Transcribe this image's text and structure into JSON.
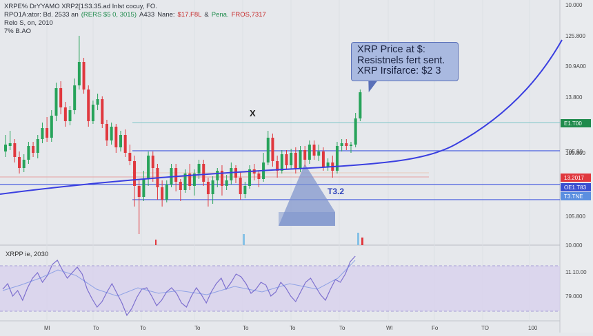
{
  "header": {
    "line1_parts": [
      {
        "text": "XRPE% DrYYAMO XRP2[1S3.35.ad Inlst cocuy, FO.",
        "tone": "dark"
      }
    ],
    "line2_parts": [
      {
        "text": "RPO1A:ator: Bd. 2533 an",
        "tone": "dark"
      },
      {
        "text": "(RERS $5 0, 3015)",
        "tone": "green"
      },
      {
        "text": "A433",
        "tone": "dark"
      },
      {
        "text": "Nane:",
        "tone": "dark"
      },
      {
        "text": "$17.F8L",
        "tone": "red"
      },
      {
        "text": "&",
        "tone": "dark"
      },
      {
        "text": "Pena.",
        "tone": "green"
      },
      {
        "text": "FROS,7317",
        "tone": "red"
      }
    ],
    "line3": "Relo S, on, 2010",
    "line4": "7% B.AO"
  },
  "tooltip": {
    "line1": "XRP Price at $:",
    "line2": "Resistnels fert sent.",
    "line3": "XRP Irsifarce: $2 3"
  },
  "triangle_label": "T3.2",
  "x_marker": "X",
  "rsi_label": "XRPP ie, 2030",
  "colors": {
    "bg": "#e6e8ec",
    "up": "#27a35a",
    "down": "#e0383e",
    "trend": "#3a3fe0",
    "rsi": "#7d6fcf",
    "rsi_band": "#d5cfee",
    "tri": "#7a92cc"
  },
  "chart_data": {
    "type": "candlestick",
    "y_axis_ticks": [
      "10.000",
      "125.800",
      "30.9A00",
      "13.800",
      "105.800",
      "105.800",
      "10.000"
    ],
    "price_labels": [
      {
        "text": "E1.T00",
        "color": "#1f8b4c"
      },
      {
        "text": "T05.80",
        "color": "none"
      },
      {
        "text": "13.2017",
        "color": "#e0383e"
      },
      {
        "text": "OE1.T83",
        "color": "#3a4fd0"
      },
      {
        "text": "T3.TNE",
        "color": "#5b8fe0"
      }
    ],
    "rsi_ticks": [
      "11.10.00",
      "79.000"
    ],
    "x_tick_labels": [
      "Ml",
      "To",
      "To",
      "To",
      "To",
      "To",
      "To",
      "Wl",
      "Fo",
      "TO",
      "100",
      "100"
    ],
    "candles": [
      [
        220,
        210,
        228,
        196
      ],
      [
        212,
        208,
        218,
        190
      ],
      [
        208,
        228,
        236,
        202
      ],
      [
        228,
        244,
        252,
        220
      ],
      [
        244,
        232,
        250,
        224
      ],
      [
        232,
        212,
        238,
        206
      ],
      [
        212,
        222,
        228,
        206
      ],
      [
        222,
        202,
        230,
        196
      ],
      [
        202,
        186,
        208,
        178
      ],
      [
        186,
        200,
        206,
        170
      ],
      [
        200,
        168,
        206,
        160
      ],
      [
        168,
        128,
        176,
        120
      ],
      [
        128,
        156,
        166,
        118
      ],
      [
        156,
        176,
        184,
        148
      ],
      [
        176,
        160,
        182,
        154
      ],
      [
        160,
        124,
        166,
        114
      ],
      [
        124,
        90,
        130,
        52
      ],
      [
        90,
        130,
        136,
        84
      ],
      [
        130,
        176,
        184,
        124
      ],
      [
        176,
        152,
        180,
        146
      ],
      [
        152,
        144,
        160,
        136
      ],
      [
        144,
        180,
        186,
        140
      ],
      [
        180,
        204,
        212,
        174
      ],
      [
        204,
        184,
        210,
        178
      ],
      [
        184,
        214,
        222,
        180
      ],
      [
        214,
        196,
        220,
        190
      ],
      [
        196,
        222,
        228,
        188
      ],
      [
        222,
        234,
        240,
        210
      ],
      [
        234,
        270,
        300,
        226
      ],
      [
        270,
        286,
        340,
        262
      ],
      [
        286,
        260,
        292,
        248
      ],
      [
        260,
        226,
        270,
        220
      ],
      [
        226,
        244,
        264,
        220
      ],
      [
        244,
        272,
        290,
        238
      ],
      [
        272,
        290,
        300,
        262
      ],
      [
        290,
        268,
        294,
        262
      ],
      [
        268,
        244,
        272,
        238
      ],
      [
        244,
        264,
        278,
        238
      ],
      [
        264,
        276,
        292,
        260
      ],
      [
        276,
        252,
        280,
        246
      ],
      [
        252,
        270,
        276,
        238
      ],
      [
        270,
        252,
        284,
        246
      ],
      [
        252,
        238,
        260,
        232
      ],
      [
        238,
        264,
        270,
        232
      ],
      [
        264,
        282,
        300,
        258
      ],
      [
        282,
        262,
        296,
        256
      ],
      [
        262,
        248,
        272,
        244
      ],
      [
        248,
        270,
        284,
        240
      ],
      [
        270,
        262,
        276,
        254
      ],
      [
        262,
        244,
        268,
        236
      ],
      [
        244,
        258,
        266,
        240
      ],
      [
        258,
        282,
        290,
        250
      ],
      [
        282,
        270,
        288,
        264
      ],
      [
        270,
        246,
        274,
        240
      ],
      [
        246,
        252,
        262,
        238
      ],
      [
        252,
        260,
        272,
        248
      ],
      [
        260,
        236,
        264,
        222
      ],
      [
        236,
        200,
        240,
        190
      ],
      [
        200,
        234,
        242,
        194
      ],
      [
        234,
        248,
        258,
        226
      ],
      [
        248,
        224,
        252,
        218
      ],
      [
        224,
        240,
        246,
        218
      ],
      [
        240,
        222,
        246,
        216
      ],
      [
        222,
        246,
        252,
        214
      ],
      [
        246,
        218,
        250,
        212
      ],
      [
        218,
        232,
        242,
        212
      ],
      [
        232,
        210,
        238,
        204
      ],
      [
        210,
        226,
        232,
        204
      ],
      [
        226,
        220,
        234,
        210
      ],
      [
        220,
        242,
        248,
        214
      ],
      [
        242,
        236,
        248,
        230
      ],
      [
        236,
        248,
        258,
        226
      ],
      [
        248,
        212,
        252,
        206
      ],
      [
        212,
        208,
        220,
        202
      ],
      [
        208,
        212,
        218,
        202
      ],
      [
        212,
        210,
        222,
        206
      ],
      [
        210,
        172,
        214,
        164
      ],
      [
        172,
        134,
        176,
        130
      ]
    ]
  }
}
